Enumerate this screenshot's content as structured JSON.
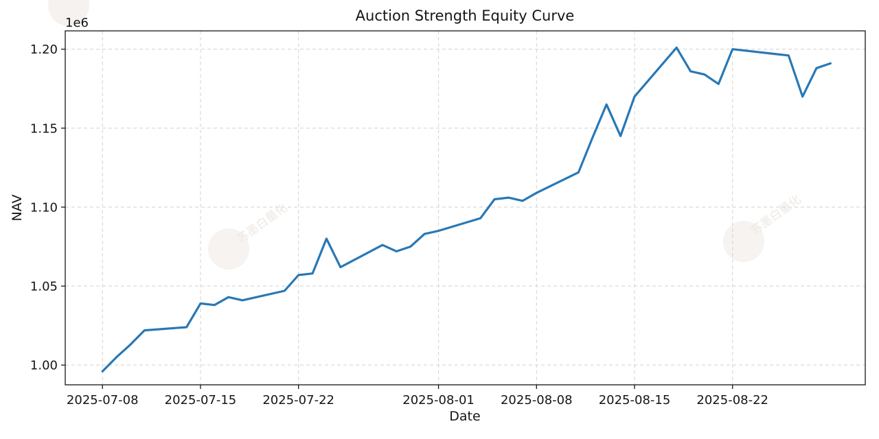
{
  "figure": {
    "title": "Auction Strength Equity Curve",
    "xlabel": "Date",
    "ylabel": "NAV",
    "y_offset_label": "1e6",
    "watermark_text": "苏墨白量化"
  },
  "chart_data": {
    "type": "line",
    "title": "Auction Strength Equity Curve",
    "xlabel": "Date",
    "ylabel": "NAV",
    "y_multiplier_label": "1e6",
    "grid": true,
    "legend_position": "none",
    "series": [
      {
        "name": "NAV",
        "color": "#2878b5",
        "dates": [
          "2025-07-08",
          "2025-07-09",
          "2025-07-10",
          "2025-07-11",
          "2025-07-14",
          "2025-07-15",
          "2025-07-16",
          "2025-07-17",
          "2025-07-18",
          "2025-07-21",
          "2025-07-22",
          "2025-07-23",
          "2025-07-24",
          "2025-07-25",
          "2025-07-28",
          "2025-07-29",
          "2025-07-30",
          "2025-07-31",
          "2025-08-01",
          "2025-08-04",
          "2025-08-05",
          "2025-08-06",
          "2025-08-07",
          "2025-08-08",
          "2025-08-11",
          "2025-08-12",
          "2025-08-13",
          "2025-08-14",
          "2025-08-15",
          "2025-08-18",
          "2025-08-19",
          "2025-08-20",
          "2025-08-21",
          "2025-08-22",
          "2025-08-25",
          "2025-08-26",
          "2025-08-27",
          "2025-08-28",
          "2025-08-29"
        ],
        "values_1e6": [
          0.996,
          1.005,
          1.013,
          1.022,
          1.024,
          1.039,
          1.038,
          1.043,
          1.041,
          1.047,
          1.057,
          1.058,
          1.08,
          1.062,
          1.076,
          1.072,
          1.075,
          1.083,
          1.085,
          1.093,
          1.105,
          1.106,
          1.104,
          1.109,
          1.122,
          1.144,
          1.165,
          1.145,
          1.17,
          1.201,
          1.186,
          1.184,
          1.178,
          1.2,
          1.197,
          1.196,
          1.17,
          1.188,
          1.191
        ]
      }
    ],
    "x_ticks": [
      "2025-07-08",
      "2025-07-15",
      "2025-07-22",
      "2025-08-01",
      "2025-08-08",
      "2025-08-15",
      "2025-08-22"
    ],
    "y_ticks": [
      1.0,
      1.05,
      1.1,
      1.15,
      1.2
    ],
    "x_start_date": "2025-07-08",
    "xlim_days": [
      -2.66,
      54.48
    ],
    "ylim": [
      0.9875,
      1.2116
    ],
    "grid_color": "#d5d5d5",
    "spine_color": "#151515"
  }
}
